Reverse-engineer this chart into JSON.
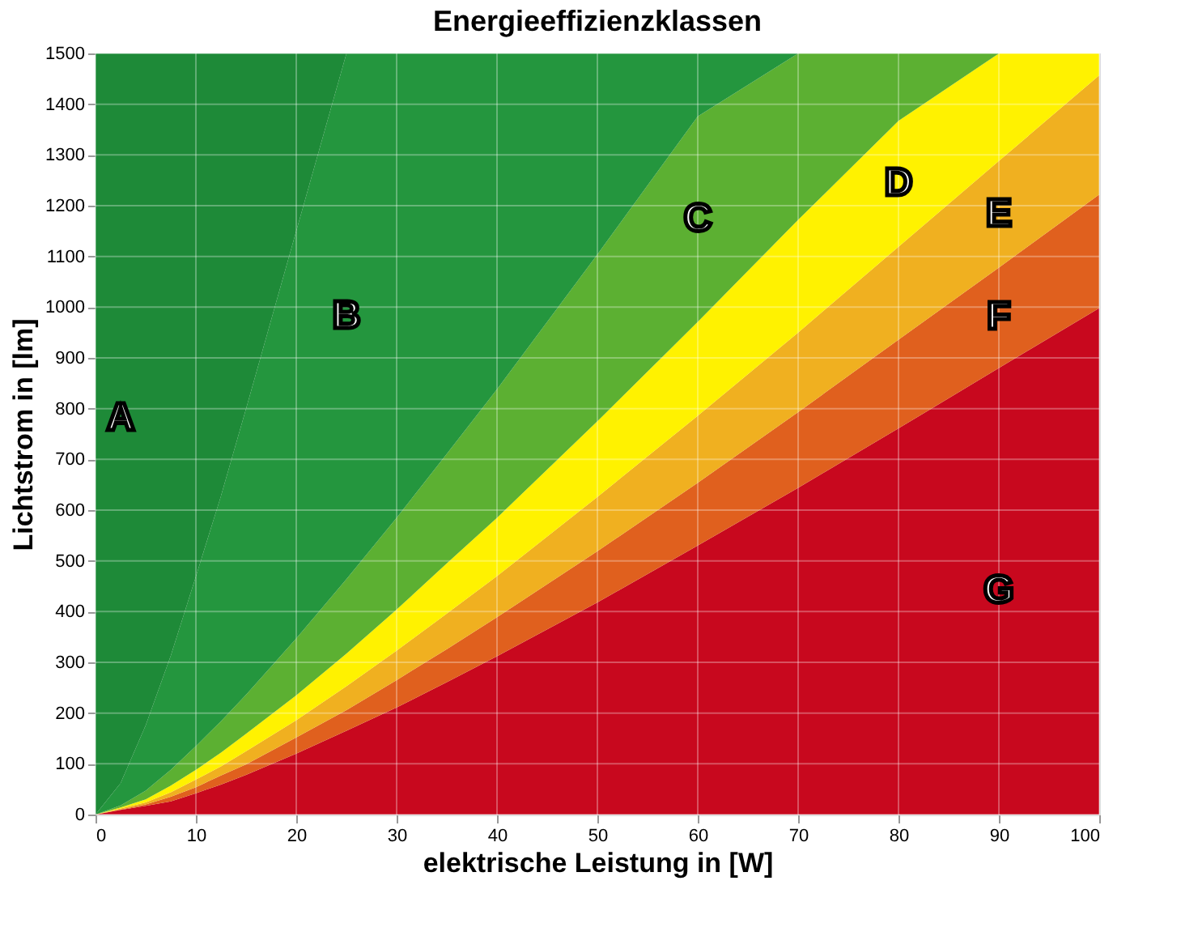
{
  "chart_data": {
    "type": "area",
    "stacked": true,
    "title": "Energieeffizienzklassen",
    "xlabel": "elektrische Leistung in [W]",
    "ylabel": "Lichtstrom in [lm]",
    "xlim": [
      0,
      100
    ],
    "xticks": [
      0,
      10,
      20,
      30,
      40,
      50,
      60,
      70,
      80,
      90,
      100
    ],
    "ylim": [
      0,
      1500
    ],
    "yticks": [
      0,
      100,
      200,
      300,
      400,
      500,
      600,
      700,
      800,
      900,
      1000,
      1100,
      1200,
      1300,
      1400,
      1500
    ],
    "grid": true,
    "x": [
      0,
      2.5,
      5,
      7.5,
      10,
      12.5,
      15,
      20,
      25,
      30,
      35,
      40,
      50,
      60,
      70,
      80,
      90,
      100
    ],
    "series": [
      {
        "name": "G",
        "color": "#c8081e",
        "values": [
          0,
          9,
          17,
          26,
          42,
          59,
          78,
          120,
          165,
          211,
          261,
          312,
          418,
          530,
          644,
          761,
          880,
          998
        ]
      },
      {
        "name": "F",
        "color": "#e0601e",
        "values": [
          0,
          1,
          3,
          9,
          12,
          18,
          21,
          32,
          41,
          54,
          65,
          77,
          101,
          124,
          149,
          175,
          198,
          224
        ]
      },
      {
        "name": "E",
        "color": "#f0b020",
        "values": [
          0,
          2,
          4,
          9,
          15,
          18,
          26,
          34,
          47,
          58,
          70,
          81,
          107,
          132,
          157,
          183,
          210,
          235
        ]
      },
      {
        "name": "D",
        "color": "#fff200",
        "values": [
          0,
          2,
          6,
          13,
          19,
          27,
          34,
          49,
          64,
          81,
          99,
          115,
          149,
          185,
          222,
          248,
          212,
          43
        ]
      },
      {
        "name": "C",
        "color": "#5cb032",
        "values": [
          0,
          4,
          17,
          31,
          47,
          62,
          77,
          112,
          147,
          181,
          216,
          253,
          329,
          405,
          328,
          133,
          0,
          null
        ]
      },
      {
        "name": "B",
        "color": "#24963e",
        "values": [
          0,
          44,
          129,
          225,
          334,
          444,
          564,
          803,
          1036,
          915,
          789,
          662,
          396,
          124,
          0,
          null,
          null,
          null
        ]
      },
      {
        "name": "A",
        "color": "#1e8a38",
        "values": [
          1500,
          1438,
          1324,
          1187,
          1031,
          872,
          700,
          350,
          0,
          null,
          null,
          null,
          null,
          null,
          null,
          null,
          null,
          null
        ]
      }
    ]
  }
}
